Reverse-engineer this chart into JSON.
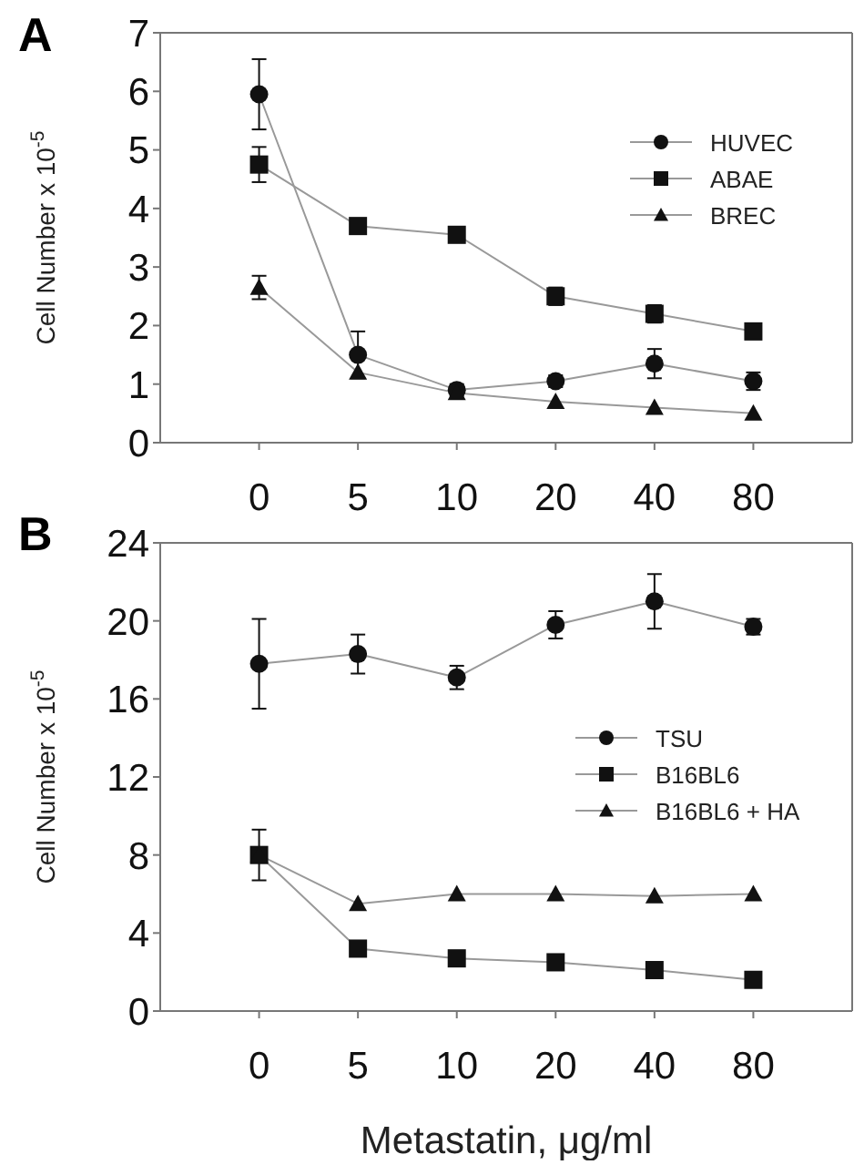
{
  "chart_data": [
    {
      "type": "line",
      "title": "A",
      "ylabel": "Cell Number x 10$^{-5}$",
      "categories": [
        "0",
        "5",
        "10",
        "20",
        "40",
        "80"
      ],
      "ylim": [
        0,
        7
      ],
      "yticks": [
        0,
        1,
        2,
        3,
        4,
        5,
        6,
        7
      ],
      "legend": "top right",
      "grid": false,
      "line_style": "solid",
      "series": [
        {
          "name": "HUVEC",
          "color": "#111111",
          "marker": "circle",
          "values": [
            5.95,
            1.5,
            0.9,
            1.05,
            1.35,
            1.05
          ],
          "errors": [
            0.6,
            0.4,
            0.1,
            0.1,
            0.25,
            0.15
          ]
        },
        {
          "name": "ABAE",
          "color": "#111111",
          "marker": "square",
          "values": [
            4.75,
            3.7,
            3.55,
            2.5,
            2.2,
            1.9
          ],
          "errors": [
            0.3,
            null,
            null,
            0.15,
            0.15,
            null
          ]
        },
        {
          "name": "BREC",
          "color": "#111111",
          "marker": "triangle",
          "values": [
            2.65,
            1.2,
            0.85,
            0.7,
            0.6,
            0.5
          ],
          "errors": [
            0.2,
            null,
            null,
            null,
            null,
            null
          ]
        }
      ]
    },
    {
      "type": "line",
      "title": "B",
      "ylabel": "Cell Number x 10$^{-5}$",
      "xlabel": "Metastatin, μg/ml",
      "categories": [
        "0",
        "5",
        "10",
        "20",
        "40",
        "80"
      ],
      "ylim": [
        0,
        24
      ],
      "yticks": [
        0,
        4,
        8,
        12,
        16,
        20,
        24
      ],
      "legend": "right",
      "grid": false,
      "line_style": "solid",
      "series": [
        {
          "name": "TSU",
          "color": "#111111",
          "marker": "circle",
          "values": [
            17.8,
            18.3,
            17.1,
            19.8,
            21,
            19.7
          ],
          "errors": [
            2.3,
            1,
            0.6,
            0.7,
            1.4,
            0.4
          ]
        },
        {
          "name": "B16BL6",
          "color": "#111111",
          "marker": "square",
          "values": [
            8,
            3.2,
            2.7,
            2.5,
            2.1,
            1.6
          ],
          "errors": [
            1.3,
            null,
            null,
            null,
            null,
            null
          ]
        },
        {
          "name": "B16BL6 + HA",
          "color": "#111111",
          "marker": "triangle",
          "values": [
            8,
            5.5,
            6,
            6,
            5.9,
            6
          ],
          "errors": [
            null,
            null,
            null,
            null,
            null,
            null
          ]
        }
      ]
    }
  ]
}
